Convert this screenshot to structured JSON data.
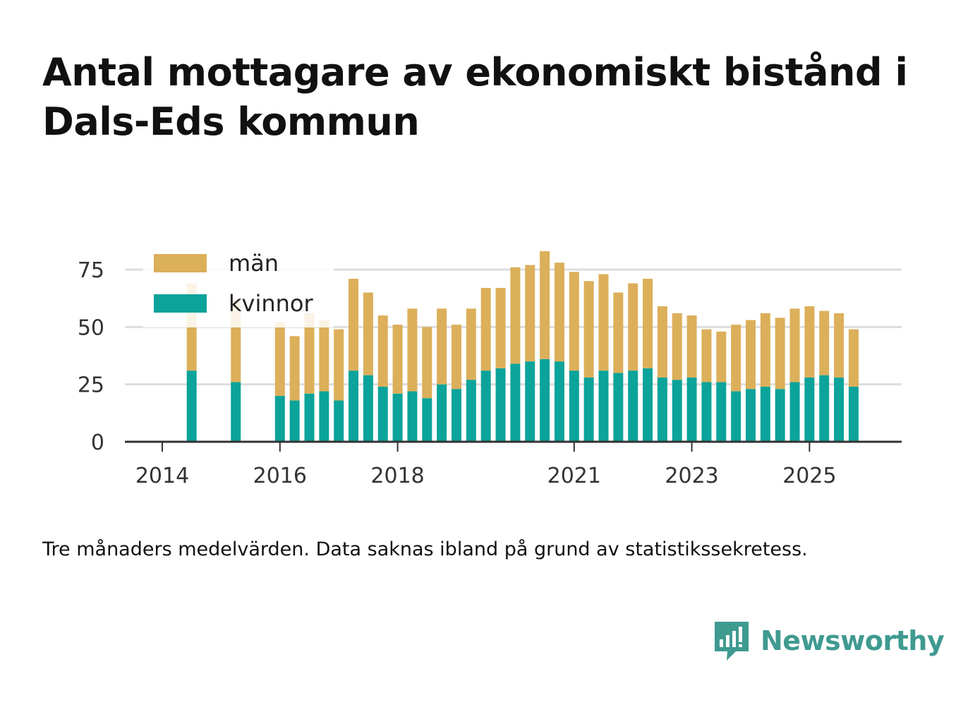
{
  "title": "Antal mottagare av ekonomiskt bistånd i Dals-Eds kommun",
  "note": "Tre månaders medelvärden. Data saknas ibland på grund av statistikssekretess.",
  "brand": {
    "name": "Newsworthy",
    "icon": "newsworthy-logo-icon",
    "color": "#3f9a90"
  },
  "colors": {
    "kvinnor": "#0ba39a",
    "man": "#dcaf5a",
    "grid": "#dddddd",
    "axis": "#333333"
  },
  "chart_data": {
    "type": "bar",
    "stacked": true,
    "title": "Antal mottagare av ekonomiskt bistånd i Dals-Eds kommun",
    "xlabel": "",
    "ylabel": "",
    "ylim": [
      0,
      85
    ],
    "yticks": [
      "0",
      "25",
      "50",
      "75"
    ],
    "xticks": [
      {
        "label": "2014",
        "index": 0
      },
      {
        "label": "2016",
        "index": 8
      },
      {
        "label": "2018",
        "index": 16
      },
      {
        "label": "2021",
        "index": 28
      },
      {
        "label": "2023",
        "index": 36
      },
      {
        "label": "2025",
        "index": 44
      }
    ],
    "legend_position": "top-left",
    "grid": true,
    "categories": [
      "2014 Q1",
      "2014 Q2",
      "2014 Q3",
      "2014 Q4",
      "2015 Q1",
      "2015 Q2",
      "2015 Q3",
      "2015 Q4",
      "2016 Q1",
      "2016 Q2",
      "2016 Q3",
      "2016 Q4",
      "2017 Q1",
      "2017 Q2",
      "2017 Q3",
      "2017 Q4",
      "2018 Q1",
      "2018 Q2",
      "2018 Q3",
      "2018 Q4",
      "2019 Q1",
      "2019 Q2",
      "2019 Q3",
      "2019 Q4",
      "2020 Q1",
      "2020 Q2",
      "2020 Q3",
      "2020 Q4",
      "2021 Q1",
      "2021 Q2",
      "2021 Q3",
      "2021 Q4",
      "2022 Q1",
      "2022 Q2",
      "2022 Q3",
      "2022 Q4",
      "2023 Q1",
      "2023 Q2",
      "2023 Q3",
      "2023 Q4",
      "2024 Q1",
      "2024 Q2",
      "2024 Q3",
      "2024 Q4",
      "2025 Q1",
      "2025 Q2",
      "2025 Q3",
      "2025 Q4"
    ],
    "series": [
      {
        "name": "kvinnor",
        "values": [
          null,
          null,
          31,
          null,
          null,
          26,
          null,
          null,
          20,
          18,
          21,
          22,
          18,
          31,
          29,
          24,
          21,
          22,
          19,
          25,
          23,
          27,
          31,
          32,
          34,
          35,
          36,
          35,
          31,
          28,
          31,
          30,
          31,
          32,
          28,
          27,
          28,
          26,
          26,
          22,
          23,
          24,
          23,
          26,
          28,
          29,
          28,
          24
        ]
      },
      {
        "name": "män",
        "values": [
          null,
          null,
          38,
          null,
          null,
          36,
          null,
          null,
          32,
          28,
          35,
          31,
          31,
          40,
          36,
          31,
          30,
          36,
          31,
          33,
          28,
          31,
          36,
          35,
          42,
          42,
          47,
          43,
          43,
          42,
          42,
          35,
          38,
          39,
          31,
          29,
          27,
          23,
          22,
          29,
          30,
          32,
          31,
          32,
          31,
          28,
          28,
          25
        ]
      }
    ],
    "legend": [
      {
        "label": "män",
        "series": 1
      },
      {
        "label": "kvinnor",
        "series": 0
      }
    ]
  }
}
